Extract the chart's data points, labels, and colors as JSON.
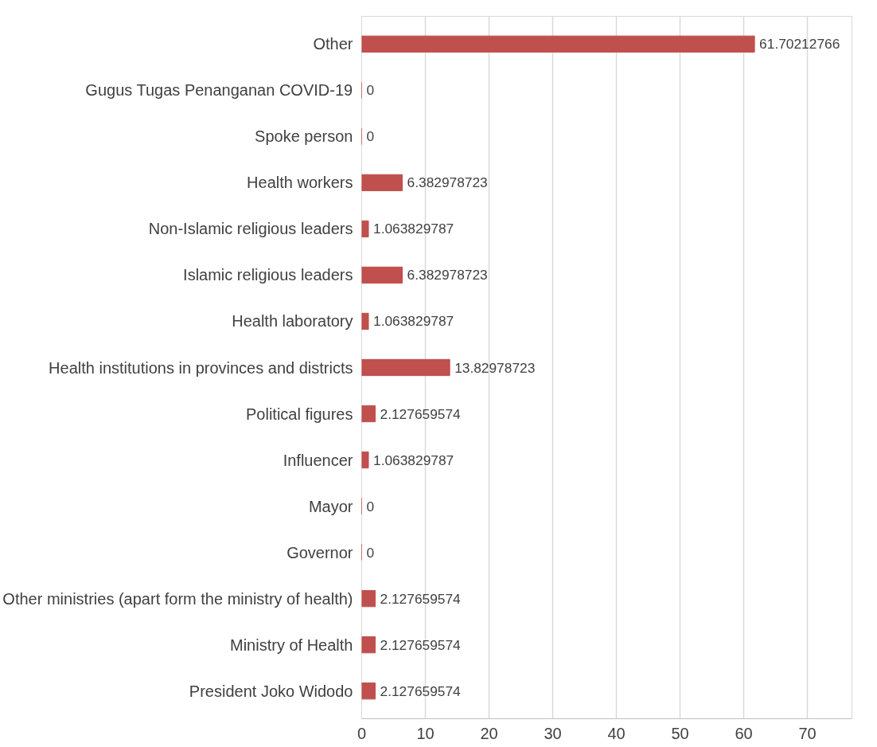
{
  "chart_data": {
    "type": "bar",
    "orientation": "horizontal",
    "categories": [
      "Other",
      "Gugus Tugas Penanganan COVID-19",
      "Spoke person",
      "Health workers",
      "Non-Islamic religious leaders",
      "Islamic religious leaders",
      "Health laboratory",
      "Health institutions in provinces and districts",
      "Political figures",
      "Influencer",
      "Mayor",
      "Governor",
      "Other ministries (apart form the ministry of health)",
      "Ministry of Health",
      "President Joko Widodo"
    ],
    "values": [
      61.70212766,
      0,
      0,
      6.382978723,
      1.063829787,
      6.382978723,
      1.063829787,
      13.82978723,
      2.127659574,
      1.063829787,
      0,
      0,
      2.127659574,
      2.127659574,
      2.127659574
    ],
    "color": "#c0504d",
    "xlim": [
      0,
      77
    ],
    "xticks": [
      0,
      10,
      20,
      30,
      40,
      50,
      60,
      70
    ],
    "grid": "x",
    "data_labels": true
  }
}
